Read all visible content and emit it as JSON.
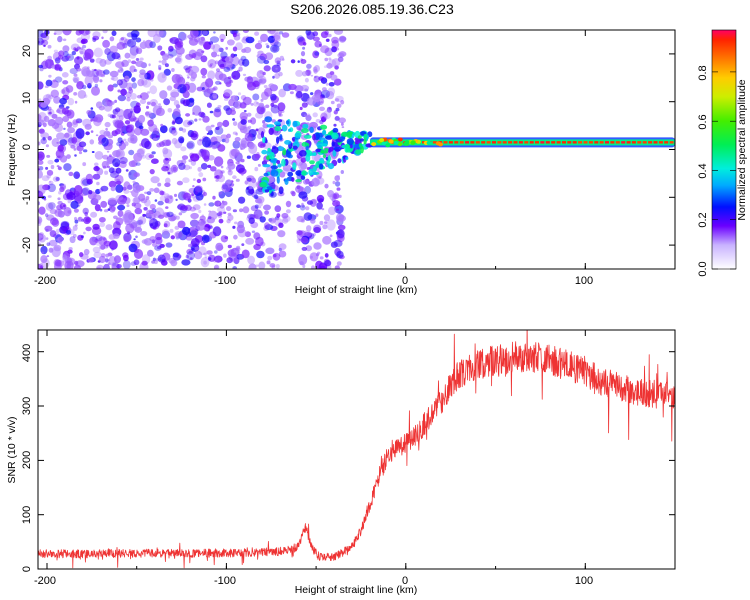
{
  "title": "S206.2026.085.19.36.C23",
  "chart_data": [
    {
      "type": "heatmap",
      "xlabel": "Height of straight line (km)",
      "ylabel": "Frequency (Hz)",
      "xlim": [
        -205,
        150
      ],
      "ylim": [
        -25,
        25
      ],
      "xticks": [
        "-200",
        "-100",
        "0",
        "100"
      ],
      "yticks": [
        "-20",
        "-10",
        "0",
        "10",
        "20"
      ],
      "colorbar": {
        "label": "Normalized spectral amplitude",
        "range": [
          0,
          0.97
        ],
        "ticks": [
          "0.0",
          "0.2",
          "0.4",
          "0.6",
          "0.8"
        ]
      },
      "grid": false,
      "features": [
        {
          "name": "broadband noise",
          "x_range": [
            -205,
            -35
          ],
          "y_range": [
            -25,
            25
          ],
          "amplitude": 0.1
        },
        {
          "name": "transition",
          "x_range": [
            -80,
            -20
          ],
          "y_center": -2,
          "amplitude": 0.35
        },
        {
          "name": "narrowband tone",
          "x_range": [
            -20,
            150
          ],
          "y_center": 1.5,
          "amplitude": 0.9
        }
      ]
    },
    {
      "type": "line",
      "xlabel": "Height of straight line (km)",
      "ylabel": "SNR (10 * v/v)",
      "xlim": [
        -205,
        150
      ],
      "ylim": [
        0,
        440
      ],
      "xticks": [
        "-200",
        "-100",
        "0",
        "100"
      ],
      "yticks": [
        "0",
        "100",
        "200",
        "300",
        "400"
      ],
      "color": "#ee3333",
      "grid": false,
      "series": [
        {
          "x": [
            -205,
            -180,
            -150,
            -120,
            -90,
            -70,
            -60,
            -56,
            -52,
            -48,
            -40,
            -30,
            -25,
            -20,
            -15,
            -10,
            -5,
            0,
            5,
            10,
            15,
            20,
            25,
            30,
            35,
            40,
            50,
            60,
            70,
            80,
            90,
            100,
            110,
            120,
            130,
            140,
            150
          ],
          "y": [
            28,
            28,
            29,
            29,
            30,
            32,
            40,
            75,
            38,
            22,
            22,
            40,
            70,
            120,
            170,
            210,
            220,
            230,
            245,
            265,
            285,
            310,
            340,
            360,
            370,
            375,
            385,
            390,
            392,
            385,
            375,
            360,
            345,
            335,
            325,
            322,
            318
          ]
        }
      ]
    }
  ]
}
